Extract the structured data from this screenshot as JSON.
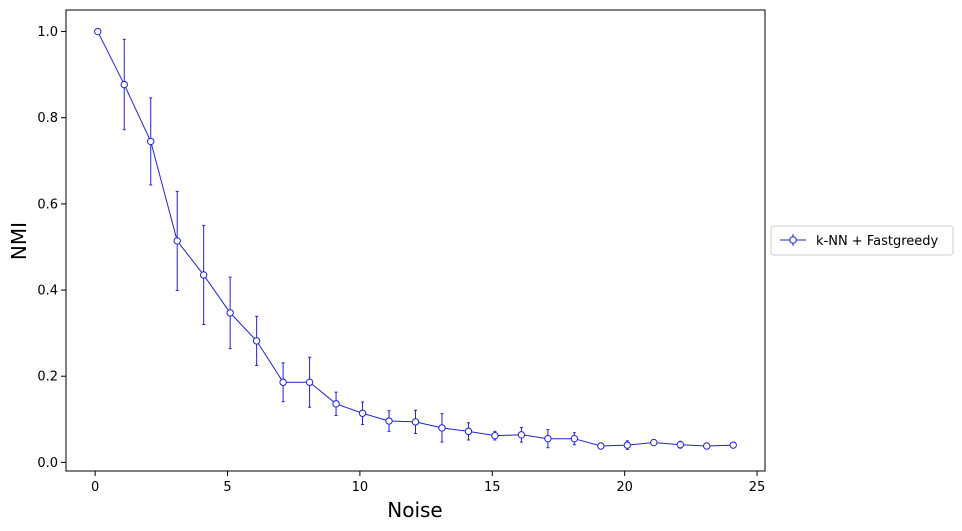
{
  "chart_data": {
    "type": "line",
    "title": "",
    "xlabel": "Noise",
    "ylabel": "NMI",
    "xlim": [
      -1.1,
      25.3
    ],
    "ylim": [
      -0.02,
      1.05
    ],
    "xticks": [
      0,
      5,
      10,
      15,
      20,
      25
    ],
    "yticks": [
      0.0,
      0.2,
      0.4,
      0.6,
      0.8,
      1.0
    ],
    "xtick_labels": [
      "0",
      "5",
      "10",
      "15",
      "20",
      "25"
    ],
    "ytick_labels": [
      "0.0",
      "0.2",
      "0.4",
      "0.6",
      "0.8",
      "1.0"
    ],
    "grid": false,
    "legend_position": "right, outside plot",
    "series": [
      {
        "name": "k-NN + Fastgreedy",
        "color": "#2020dd",
        "marker": "open-circle",
        "x": [
          0.1,
          1.1,
          2.1,
          3.1,
          4.1,
          5.1,
          6.1,
          7.1,
          8.1,
          9.1,
          10.1,
          11.1,
          12.1,
          13.1,
          14.1,
          15.1,
          16.1,
          17.1,
          18.1,
          19.1,
          20.1,
          21.1,
          22.1,
          23.1,
          24.1
        ],
        "y": [
          1.0,
          0.877,
          0.745,
          0.514,
          0.435,
          0.347,
          0.282,
          0.186,
          0.186,
          0.136,
          0.114,
          0.096,
          0.094,
          0.08,
          0.072,
          0.062,
          0.064,
          0.055,
          0.055,
          0.038,
          0.04,
          0.046,
          0.041,
          0.038,
          0.04
        ],
        "yerr": [
          0.0,
          0.105,
          0.101,
          0.115,
          0.115,
          0.083,
          0.057,
          0.045,
          0.058,
          0.027,
          0.026,
          0.024,
          0.027,
          0.033,
          0.02,
          0.01,
          0.017,
          0.021,
          0.014,
          0.003,
          0.01,
          0.007,
          0.008,
          0.007,
          0.005
        ]
      }
    ]
  }
}
